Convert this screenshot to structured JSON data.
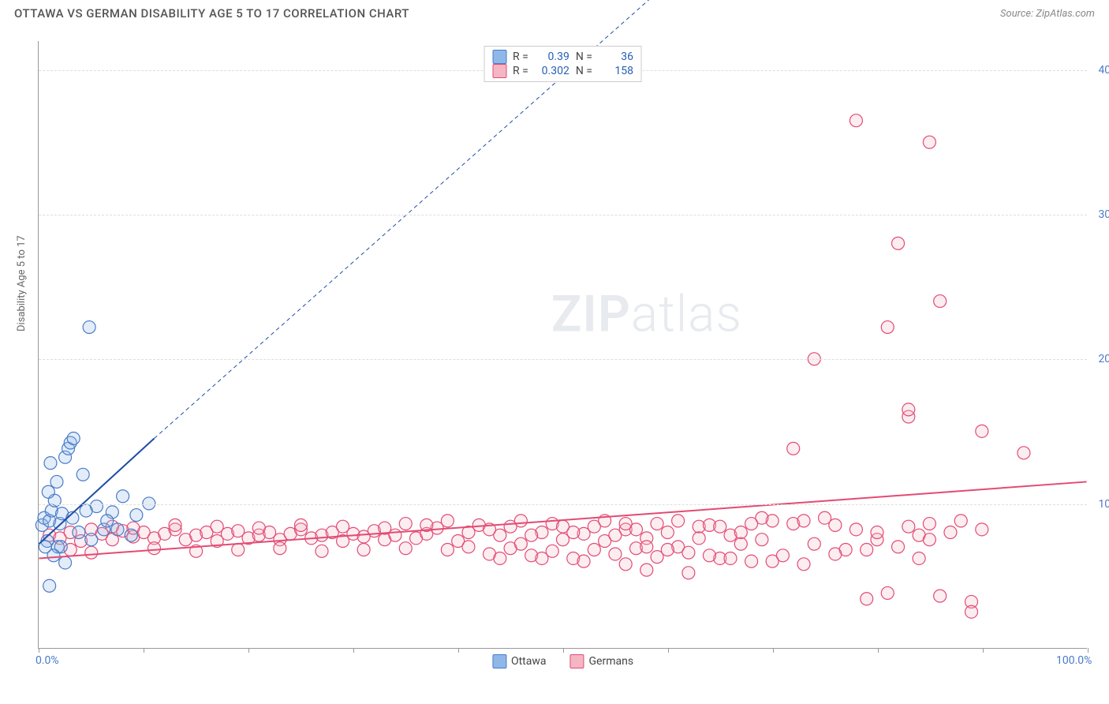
{
  "header": {
    "title": "OTTAWA VS GERMAN DISABILITY AGE 5 TO 17 CORRELATION CHART",
    "source_label": "Source: ZipAtlas.com"
  },
  "watermark": {
    "part1": "ZIP",
    "part2": "atlas"
  },
  "chart": {
    "type": "scatter",
    "y_axis_title": "Disability Age 5 to 17",
    "xlim": [
      0,
      100
    ],
    "ylim": [
      0,
      42
    ],
    "x_ticks": [
      0,
      10,
      20,
      30,
      40,
      50,
      60,
      70,
      80,
      90,
      100
    ],
    "x_tick_labels": {
      "0": "0.0%",
      "100": "100.0%"
    },
    "y_grid": [
      10,
      20,
      30,
      40
    ],
    "y_tick_labels": {
      "10": "10.0%",
      "20": "20.0%",
      "30": "30.0%",
      "40": "40.0%"
    },
    "background_color": "#ffffff",
    "grid_color": "#dddddd",
    "axis_color": "#999999",
    "tick_label_color": "#4a7bc8",
    "marker_radius": 8,
    "marker_stroke_width": 1.2,
    "marker_fill_opacity": 0.25,
    "series": [
      {
        "name": "Ottawa",
        "color_fill": "#8fb8e8",
        "color_stroke": "#4a7bc8",
        "r": 0.39,
        "n": 36,
        "trend": {
          "x1": 0,
          "y1": 7.2,
          "x2": 11,
          "y2": 14.5,
          "extend_x2": 60,
          "extend_y2": 46,
          "color": "#1f4da6",
          "width": 2,
          "dash_extend": "5,4"
        },
        "points": [
          [
            0.3,
            8.5
          ],
          [
            0.5,
            9.0
          ],
          [
            0.8,
            7.4
          ],
          [
            1.0,
            8.8
          ],
          [
            1.2,
            9.5
          ],
          [
            1.5,
            10.2
          ],
          [
            1.8,
            7.0
          ],
          [
            2.0,
            8.6
          ],
          [
            2.2,
            9.3
          ],
          [
            2.5,
            13.2
          ],
          [
            2.8,
            13.8
          ],
          [
            3.0,
            14.2
          ],
          [
            3.3,
            14.5
          ],
          [
            2.1,
            7.0
          ],
          [
            3.8,
            8.0
          ],
          [
            4.2,
            12.0
          ],
          [
            5.0,
            7.5
          ],
          [
            5.5,
            9.8
          ],
          [
            6.2,
            8.2
          ],
          [
            4.8,
            22.2
          ],
          [
            7.0,
            9.4
          ],
          [
            7.5,
            8.2
          ],
          [
            8.0,
            10.5
          ],
          [
            8.8,
            7.8
          ],
          [
            9.3,
            9.2
          ],
          [
            10.5,
            10.0
          ],
          [
            1.0,
            4.3
          ],
          [
            1.4,
            6.4
          ],
          [
            0.9,
            10.8
          ],
          [
            1.7,
            11.5
          ],
          [
            2.5,
            5.9
          ],
          [
            3.2,
            9.0
          ],
          [
            0.6,
            7.0
          ],
          [
            1.1,
            12.8
          ],
          [
            4.5,
            9.5
          ],
          [
            6.5,
            8.8
          ]
        ]
      },
      {
        "name": "Germans",
        "color_fill": "#f5b6c4",
        "color_stroke": "#e24b74",
        "r": 0.302,
        "n": 158,
        "trend": {
          "x1": 0,
          "y1": 6.2,
          "x2": 100,
          "y2": 11.5,
          "color": "#e24b74",
          "width": 2
        },
        "points": [
          [
            1,
            7.8
          ],
          [
            2,
            7.6
          ],
          [
            3,
            8.0
          ],
          [
            4,
            7.4
          ],
          [
            5,
            8.2
          ],
          [
            6,
            7.9
          ],
          [
            7,
            7.5
          ],
          [
            8,
            8.1
          ],
          [
            9,
            7.7
          ],
          [
            10,
            8.0
          ],
          [
            11,
            7.6
          ],
          [
            12,
            7.9
          ],
          [
            13,
            8.2
          ],
          [
            14,
            7.5
          ],
          [
            15,
            7.8
          ],
          [
            16,
            8.0
          ],
          [
            17,
            7.4
          ],
          [
            18,
            7.9
          ],
          [
            19,
            8.1
          ],
          [
            20,
            7.6
          ],
          [
            21,
            7.8
          ],
          [
            22,
            8.0
          ],
          [
            23,
            7.5
          ],
          [
            24,
            7.9
          ],
          [
            25,
            8.2
          ],
          [
            26,
            7.6
          ],
          [
            27,
            7.8
          ],
          [
            28,
            8.0
          ],
          [
            29,
            7.4
          ],
          [
            30,
            7.9
          ],
          [
            31,
            7.7
          ],
          [
            32,
            8.1
          ],
          [
            33,
            7.5
          ],
          [
            34,
            7.8
          ],
          [
            35,
            8.6
          ],
          [
            36,
            7.6
          ],
          [
            37,
            7.9
          ],
          [
            38,
            8.3
          ],
          [
            39,
            6.8
          ],
          [
            40,
            7.4
          ],
          [
            41,
            7.0
          ],
          [
            42,
            8.5
          ],
          [
            43,
            6.5
          ],
          [
            44,
            7.8
          ],
          [
            45,
            6.9
          ],
          [
            46,
            7.2
          ],
          [
            47,
            6.4
          ],
          [
            48,
            8.0
          ],
          [
            49,
            6.7
          ],
          [
            50,
            7.5
          ],
          [
            51,
            6.2
          ],
          [
            52,
            7.9
          ],
          [
            53,
            6.8
          ],
          [
            54,
            7.4
          ],
          [
            55,
            6.5
          ],
          [
            56,
            8.2
          ],
          [
            57,
            6.9
          ],
          [
            58,
            7.6
          ],
          [
            59,
            6.3
          ],
          [
            60,
            8.0
          ],
          [
            61,
            7.0
          ],
          [
            62,
            6.6
          ],
          [
            63,
            8.4
          ],
          [
            64,
            8.5
          ],
          [
            65,
            6.2
          ],
          [
            66,
            7.8
          ],
          [
            67,
            8.0
          ],
          [
            68,
            6.0
          ],
          [
            69,
            7.5
          ],
          [
            70,
            8.8
          ],
          [
            71,
            6.4
          ],
          [
            72,
            8.6
          ],
          [
            73,
            5.8
          ],
          [
            74,
            7.2
          ],
          [
            75,
            9.0
          ],
          [
            76,
            8.5
          ],
          [
            77,
            6.8
          ],
          [
            78,
            8.2
          ],
          [
            79,
            3.4
          ],
          [
            80,
            7.5
          ],
          [
            81,
            3.8
          ],
          [
            82,
            7.0
          ],
          [
            83,
            8.4
          ],
          [
            84,
            7.8
          ],
          [
            85,
            8.6
          ],
          [
            86,
            3.6
          ],
          [
            87,
            8.0
          ],
          [
            88,
            8.8
          ],
          [
            89,
            3.2
          ],
          [
            90,
            8.2
          ],
          [
            56,
            5.8
          ],
          [
            58,
            5.4
          ],
          [
            62,
            5.2
          ],
          [
            72,
            13.8
          ],
          [
            74,
            20.0
          ],
          [
            78,
            36.5
          ],
          [
            80,
            8.0
          ],
          [
            81,
            22.2
          ],
          [
            82,
            28.0
          ],
          [
            83,
            16.0
          ],
          [
            83,
            16.5
          ],
          [
            85,
            35.0
          ],
          [
            85,
            7.5
          ],
          [
            86,
            24.0
          ],
          [
            89,
            2.5
          ],
          [
            90,
            15.0
          ],
          [
            94,
            13.5
          ],
          [
            3,
            6.8
          ],
          [
            5,
            6.6
          ],
          [
            7,
            8.4
          ],
          [
            9,
            8.3
          ],
          [
            11,
            6.9
          ],
          [
            13,
            8.5
          ],
          [
            15,
            6.7
          ],
          [
            17,
            8.4
          ],
          [
            19,
            6.8
          ],
          [
            21,
            8.3
          ],
          [
            23,
            6.9
          ],
          [
            25,
            8.5
          ],
          [
            27,
            6.7
          ],
          [
            29,
            8.4
          ],
          [
            31,
            6.8
          ],
          [
            33,
            8.3
          ],
          [
            35,
            6.9
          ],
          [
            37,
            8.5
          ],
          [
            39,
            8.8
          ],
          [
            41,
            8.0
          ],
          [
            43,
            8.2
          ],
          [
            45,
            8.4
          ],
          [
            47,
            7.8
          ],
          [
            49,
            8.6
          ],
          [
            51,
            8.0
          ],
          [
            53,
            8.4
          ],
          [
            55,
            7.8
          ],
          [
            57,
            8.2
          ],
          [
            59,
            8.6
          ],
          [
            61,
            8.8
          ],
          [
            63,
            7.6
          ],
          [
            65,
            8.4
          ],
          [
            67,
            7.2
          ],
          [
            69,
            9.0
          ],
          [
            54,
            8.8
          ],
          [
            48,
            6.2
          ],
          [
            52,
            6.0
          ],
          [
            44,
            6.2
          ],
          [
            46,
            8.8
          ],
          [
            50,
            8.4
          ],
          [
            56,
            8.6
          ],
          [
            58,
            7.0
          ],
          [
            60,
            6.8
          ],
          [
            64,
            6.4
          ],
          [
            66,
            6.2
          ],
          [
            68,
            8.6
          ],
          [
            70,
            6.0
          ],
          [
            73,
            8.8
          ],
          [
            76,
            6.5
          ],
          [
            79,
            6.8
          ],
          [
            84,
            6.2
          ]
        ]
      }
    ]
  },
  "legend_top": {
    "r_label": "R =",
    "n_label": "N ="
  },
  "legend_bottom": {
    "items": [
      "Ottawa",
      "Germans"
    ]
  }
}
